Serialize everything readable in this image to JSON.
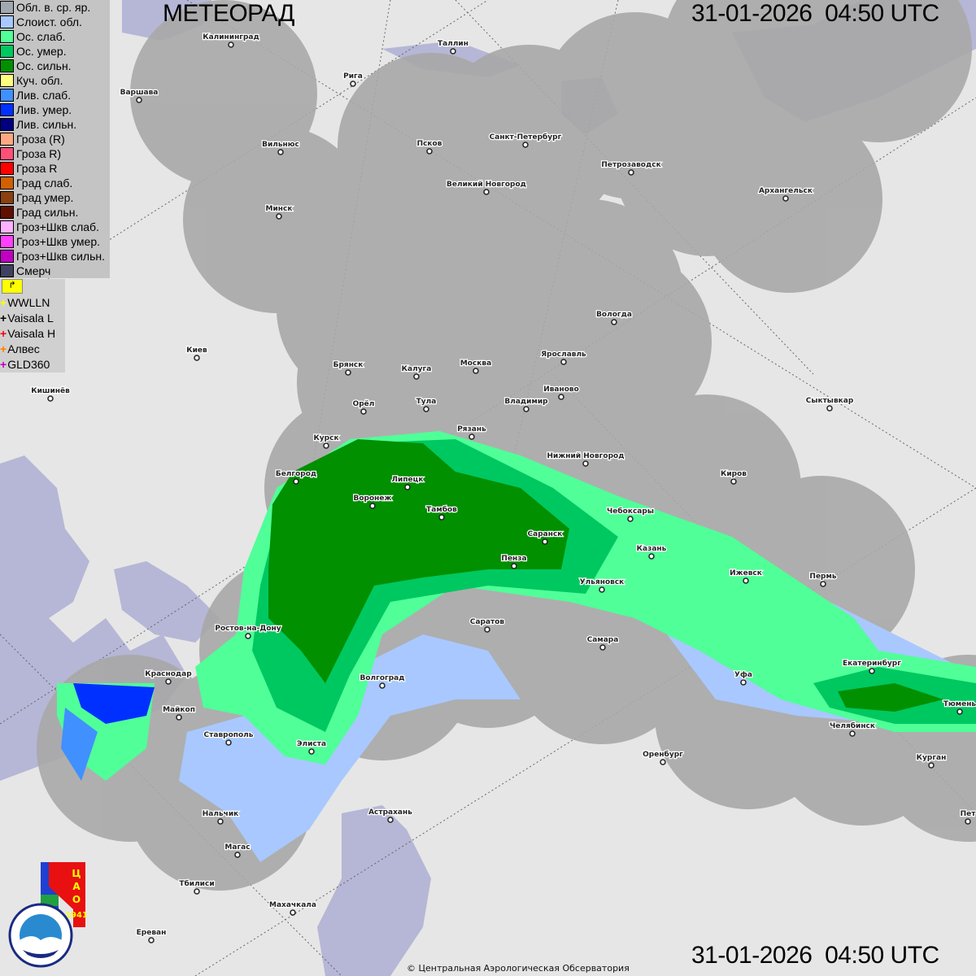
{
  "header": {
    "title": "МЕТЕОРАД",
    "timestamp_top": "31-01-2026  04:50 UTC",
    "timestamp_bottom": "31-01-2026  04:50 UTC"
  },
  "legend": [
    {
      "label": "Обл. в. ср. яр.",
      "color": "#a0a8b0"
    },
    {
      "label": "Слоист. обл.",
      "color": "#a8c8ff"
    },
    {
      "label": "Ос. слаб.",
      "color": "#50ff98"
    },
    {
      "label": "Ос. умер.",
      "color": "#00c860"
    },
    {
      "label": "Ос. сильн.",
      "color": "#009000"
    },
    {
      "label": "Куч. обл.",
      "color": "#ffff80"
    },
    {
      "label": "Лив. слаб.",
      "color": "#4090ff"
    },
    {
      "label": "Лив. умер.",
      "color": "#0030ff"
    },
    {
      "label": "Лив. сильн.",
      "color": "#000080"
    },
    {
      "label": "Гроза (R)",
      "color": "#ffa880"
    },
    {
      "label": "Гроза R)",
      "color": "#ff5078"
    },
    {
      "label": "Гроза R",
      "color": "#ff0000"
    },
    {
      "label": "Град слаб.",
      "color": "#d06000"
    },
    {
      "label": "Град умер.",
      "color": "#8a4010"
    },
    {
      "label": "Град сильн.",
      "color": "#601000"
    },
    {
      "label": "Гроз+Шкв слаб.",
      "color": "#ffb0ff"
    },
    {
      "label": "Гроз+Шкв умер.",
      "color": "#ff40ff"
    },
    {
      "label": "Гроз+Шкв сильн.",
      "color": "#c000c0"
    },
    {
      "label": "Смерч",
      "color": "#404060"
    }
  ],
  "lightning": [
    {
      "label": "WWLLN",
      "color": "#ffff00"
    },
    {
      "label": "Vaisala L",
      "color": "#000000"
    },
    {
      "label": "Vaisala H",
      "color": "#ff0000"
    },
    {
      "label": "Алвес",
      "color": "#ff8000"
    },
    {
      "label": "GLD360",
      "color": "#c000c0"
    }
  ],
  "cities": [
    "Калининград",
    "Варшава",
    "Рига",
    "Таллин",
    "Вильнюс",
    "Псков",
    "Санкт-Петербург",
    "Петрозаводск",
    "Архангельск",
    "Великий Новгород",
    "Минск",
    "Вологда",
    "Киев",
    "Брянск",
    "Калуга",
    "Москва",
    "Ярославль",
    "Иваново",
    "Кишинёв",
    "Орёл",
    "Тула",
    "Владимир",
    "Сыктывкар",
    "Рязань",
    "Курск",
    "Нижний Новгород",
    "Киров",
    "Белгород",
    "Липецк",
    "Воронеж",
    "Тамбов",
    "Чебоксары",
    "Саранск",
    "Казань",
    "Пенза",
    "Ижевск",
    "Пермь",
    "Ульяновск",
    "Ростов-на-Дону",
    "Саратов",
    "Самара",
    "Екатеринбург",
    "Краснодар",
    "Уфа",
    "Волгоград",
    "Майкоп",
    "Тюмень",
    "Челябинск",
    "Ставрополь",
    "Элиста",
    "Оренбург",
    "Курган",
    "Нальчик",
    "Астрахань",
    "Пет",
    "Магас",
    "Тбилиси",
    "Махачкала",
    "Ереван"
  ],
  "logos": {
    "cao": "ЦАО 1941",
    "roshydromet": "РОСГИДРОМЕТ ROSHYDROMET"
  },
  "copyright": "© Центральная Аэрологическая Обсерватория",
  "colors": {
    "land": "#e6e6e6",
    "sea": "#b4b4d4",
    "radar_coverage": "#a9a9a9"
  }
}
